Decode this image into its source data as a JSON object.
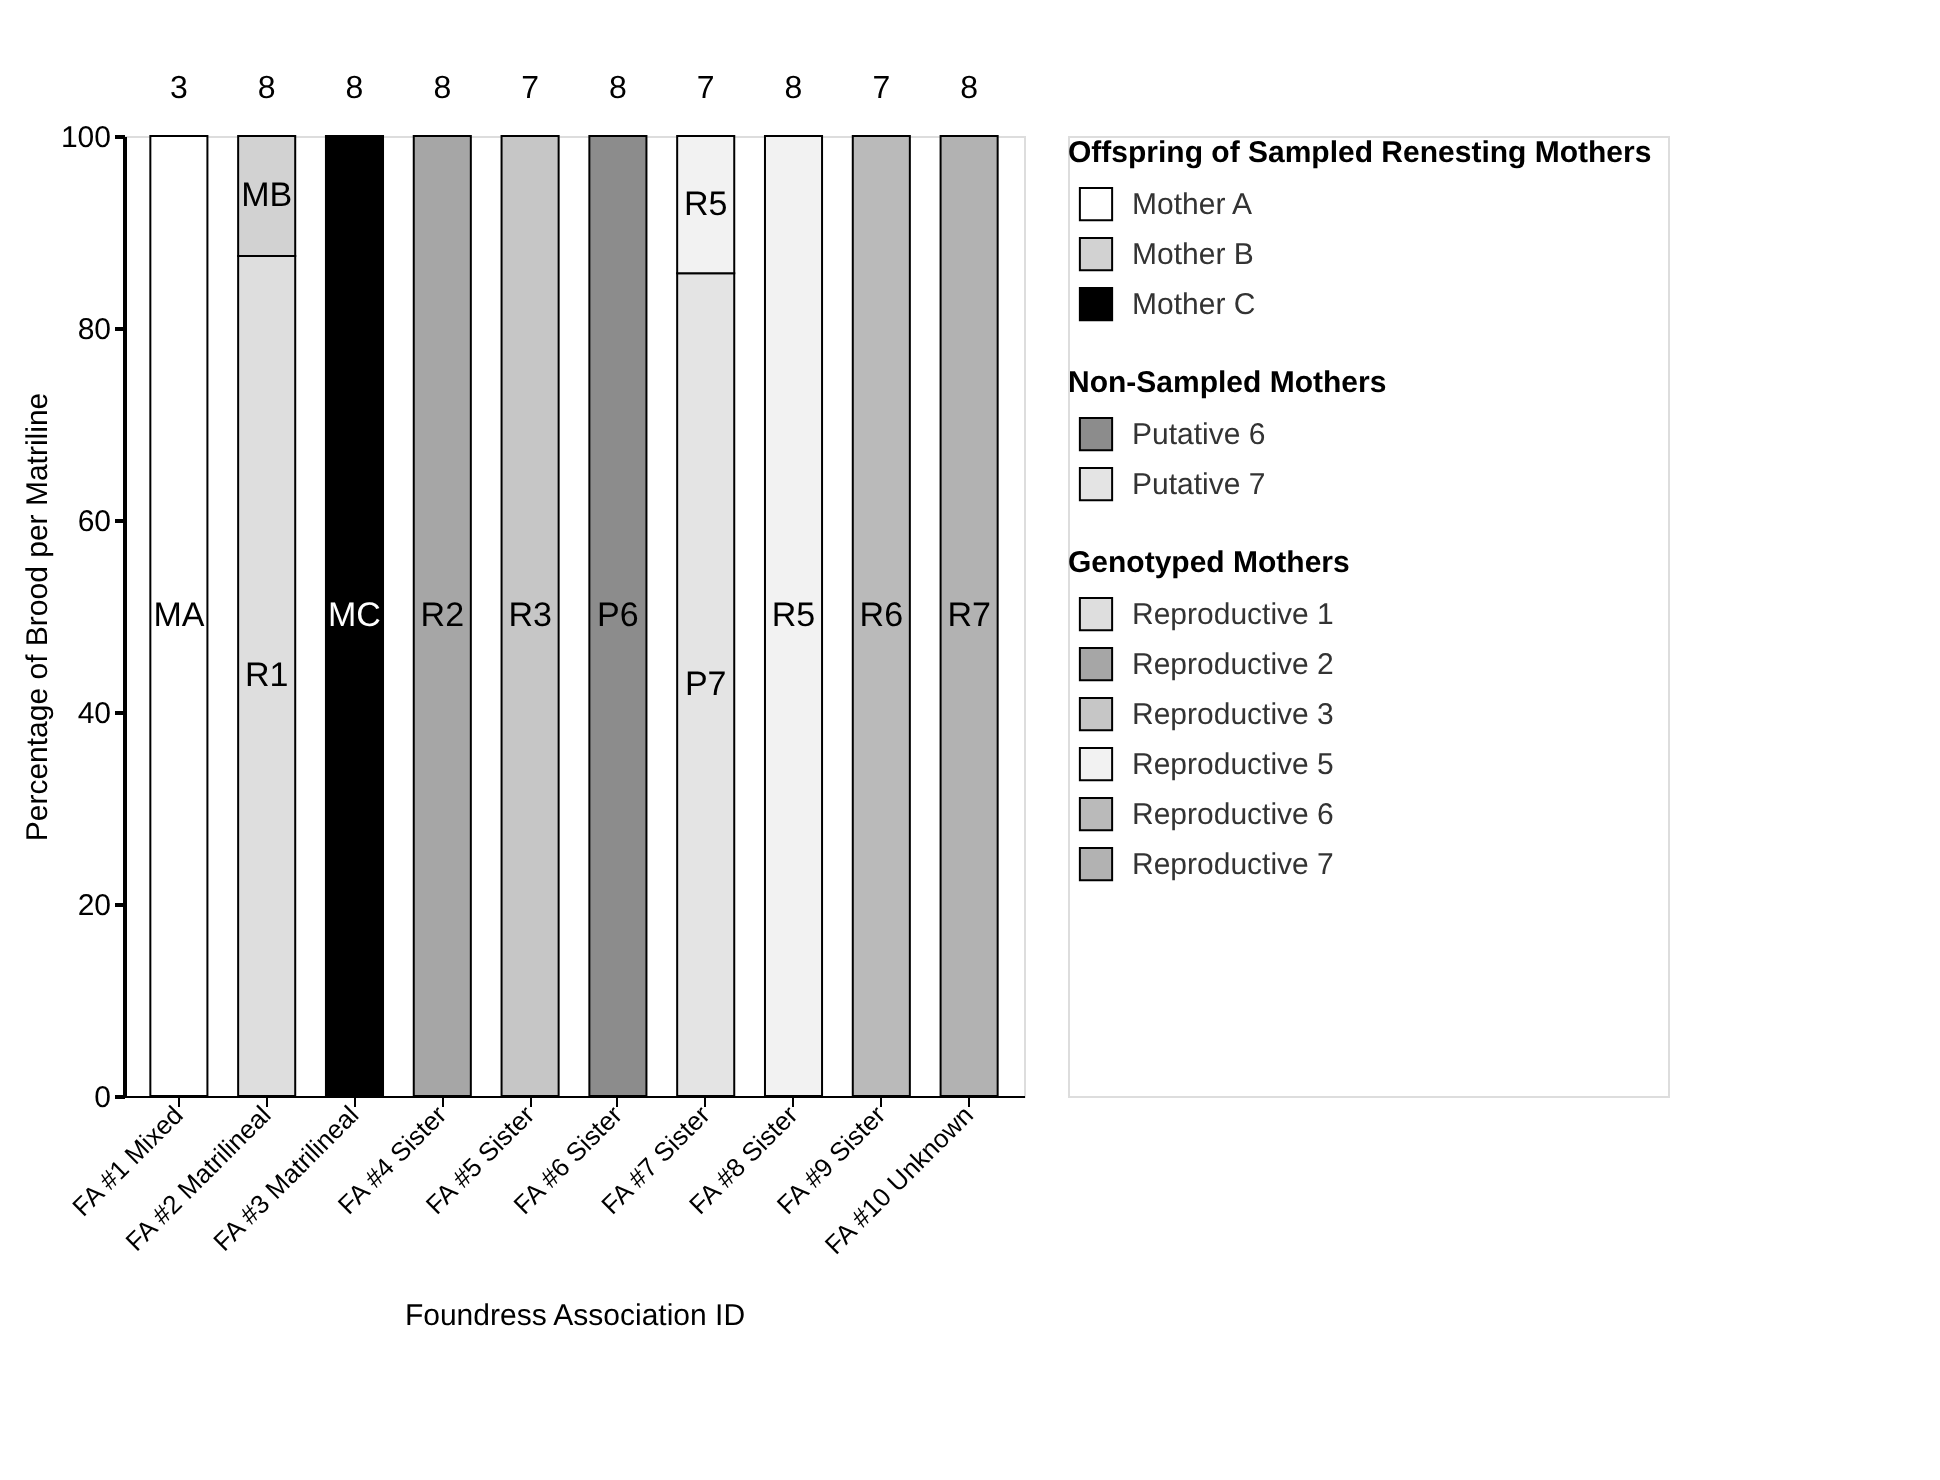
{
  "chart_data": {
    "type": "bar",
    "stacked": true,
    "xlabel": "Foundress Association ID",
    "ylabel": "Percentage of Brood per Matriline",
    "legend_title": "Offspring of Sampled Renesting Mothers",
    "categories": [
      "FA #1 Mixed",
      "FA #2 Matrilineal",
      "FA #3 Matrilineal",
      "FA #4 Sister",
      "FA #5 Sister",
      "FA #6 Sister",
      "FA #7 Sister",
      "FA #8 Sister",
      "FA #9 Sister",
      "FA #10 Unknown"
    ],
    "series": [
      {
        "name": "Putative 6",
        "color": "#8c8c8c",
        "values": [
          null,
          null,
          null,
          null,
          null,
          100,
          null,
          null,
          null,
          null
        ],
        "value_labels": [
          null,
          null,
          null,
          null,
          null,
          "P6",
          null,
          null,
          null,
          null
        ]
      },
      {
        "name": "Putative 7",
        "color": "#e4e4e4",
        "values": [
          null,
          null,
          null,
          null,
          null,
          null,
          85.7,
          null,
          null,
          null
        ],
        "value_labels": [
          null,
          null,
          null,
          null,
          null,
          null,
          "P7",
          null,
          null,
          null
        ]
      },
      {
        "name": "Reproductive 1",
        "color": "#dedede",
        "values": [
          null,
          87.5,
          null,
          null,
          null,
          null,
          null,
          null,
          null,
          null
        ],
        "value_labels": [
          null,
          "R1",
          null,
          null,
          null,
          null,
          null,
          null,
          null,
          null
        ]
      },
      {
        "name": "Reproductive 2",
        "color": "#a6a6a6",
        "values": [
          null,
          null,
          null,
          100,
          null,
          null,
          null,
          null,
          null,
          null
        ],
        "value_labels": [
          null,
          null,
          null,
          "R2",
          null,
          null,
          null,
          null,
          null,
          null
        ]
      },
      {
        "name": "Reproductive 3",
        "color": "#c6c6c6",
        "values": [
          null,
          null,
          null,
          null,
          100,
          null,
          null,
          null,
          null,
          null
        ],
        "value_labels": [
          null,
          null,
          null,
          null,
          "R3",
          null,
          null,
          null,
          null,
          null
        ]
      },
      {
        "name": "Reproductive 5",
        "color": "#f2f2f2",
        "values": [
          null,
          null,
          null,
          null,
          null,
          null,
          14.3,
          100,
          null,
          null
        ],
        "value_labels": [
          null,
          null,
          null,
          null,
          null,
          null,
          "R5",
          "R5",
          null,
          null
        ]
      },
      {
        "name": "Reproductive 6",
        "color": "#bababa",
        "values": [
          null,
          null,
          null,
          null,
          null,
          null,
          null,
          null,
          100,
          null
        ],
        "value_labels": [
          null,
          null,
          null,
          null,
          null,
          null,
          null,
          null,
          "R6",
          null
        ]
      },
      {
        "name": "Reproductive 7",
        "color": "#b2b2b2",
        "values": [
          null,
          null,
          null,
          null,
          null,
          null,
          null,
          null,
          null,
          100
        ],
        "value_labels": [
          null,
          null,
          null,
          null,
          null,
          null,
          null,
          null,
          null,
          "R7"
        ]
      },
      {
        "name": "Mother A",
        "color": "#ffffff",
        "values": [
          100,
          null,
          null,
          null,
          null,
          null,
          null,
          null,
          null,
          null
        ],
        "value_labels": [
          "MA",
          null,
          null,
          null,
          null,
          null,
          null,
          null,
          null,
          null
        ]
      },
      {
        "name": "Mother B",
        "color": "#d2d2d2",
        "values": [
          null,
          12.5,
          null,
          null,
          null,
          null,
          null,
          null,
          null,
          null
        ],
        "value_labels": [
          null,
          "MB",
          null,
          null,
          null,
          null,
          null,
          null,
          null,
          null
        ]
      },
      {
        "name": "Mother C",
        "color": "#000000",
        "values": [
          null,
          null,
          100,
          null,
          null,
          null,
          null,
          null,
          null,
          null
        ],
        "value_labels": [
          null,
          null,
          "MC",
          null,
          null,
          null,
          null,
          null,
          null,
          null
        ]
      }
    ],
    "annotations": [
      "Non-Sampled Mothers",
      "Genotyped Mothers",
      "3",
      "8",
      "8",
      "8",
      "7",
      "8",
      "7",
      "8",
      "7",
      "8"
    ],
    "ylim": [
      0,
      100
    ],
    "yticks": [
      0,
      20,
      40,
      60,
      80,
      100
    ],
    "grid": false,
    "legend": "right"
  }
}
